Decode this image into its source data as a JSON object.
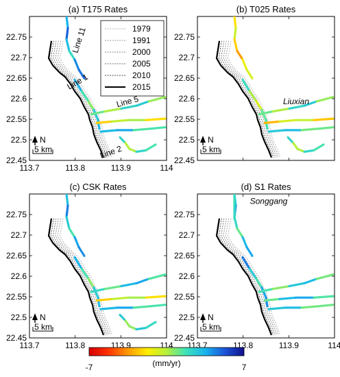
{
  "chart_data": [
    {
      "type": "scatter",
      "title": "(a) T175 Rates",
      "xlim": [
        113.7,
        114
      ],
      "ylim": [
        22.45,
        22.8
      ],
      "x_ticks": [
        "113.7",
        "113.8",
        "113.9",
        "114"
      ],
      "y_ticks": [
        "22.45",
        "22.5",
        "22.55",
        "22.6",
        "22.65",
        "22.7",
        "22.75"
      ],
      "annotations": [
        "Line 11",
        "Line 1",
        "Line 5",
        "Line 2"
      ],
      "legend": {
        "title": "",
        "entries": [
          "1979",
          "1991",
          "2000",
          "2005",
          "2010",
          "2015"
        ],
        "placement": "top-right"
      },
      "scalebar": {
        "north": "N",
        "length": "5 km"
      }
    },
    {
      "type": "scatter",
      "title": "(b) T025 Rates",
      "xlim": [
        113.7,
        114
      ],
      "ylim": [
        22.45,
        22.8
      ],
      "x_ticks": [],
      "y_ticks": [
        "22.45",
        "22.5",
        "22.55",
        "22.6",
        "22.65",
        "22.7",
        "22.75"
      ],
      "annotations": [
        "Liuxian"
      ],
      "scalebar": {
        "north": "N",
        "length": "5 km"
      }
    },
    {
      "type": "scatter",
      "title": "(c) CSK Rates",
      "xlim": [
        113.7,
        114
      ],
      "ylim": [
        22.45,
        22.8
      ],
      "x_ticks": [
        "113.7",
        "113.8",
        "113.9",
        "114"
      ],
      "y_ticks": [
        "22.45",
        "22.5",
        "22.55",
        "22.6",
        "22.65",
        "22.7",
        "22.75"
      ],
      "annotations": [],
      "scalebar": {
        "north": "N",
        "length": "5 km"
      }
    },
    {
      "type": "scatter",
      "title": "(d) S1 Rates",
      "xlim": [
        113.7,
        114
      ],
      "ylim": [
        22.45,
        22.8
      ],
      "x_ticks": [
        "113.7",
        "113.8",
        "113.9",
        "114"
      ],
      "y_ticks": [
        "22.45",
        "22.5",
        "22.55",
        "22.6",
        "22.65",
        "22.7",
        "22.75"
      ],
      "annotations": [
        "Songgang"
      ],
      "scalebar": {
        "north": "N",
        "length": "5 km"
      }
    }
  ],
  "colorbar": {
    "min_label": "-7",
    "max_label": "7",
    "unit_label": "(mm/yr)",
    "colors": [
      "#d40000",
      "#ff3300",
      "#ff9900",
      "#ffee00",
      "#b6f03c",
      "#3ce2b8",
      "#18b4ee",
      "#1c54d8",
      "#10108c"
    ]
  },
  "shoreline_colors": [
    "#b0b0b0",
    "#9a9a9a",
    "#858585",
    "#6e6e6e",
    "#4a4a4a",
    "#000000"
  ],
  "rates_by_panel": [
    [
      3.5,
      2.0,
      1.5,
      -1.0,
      2.5,
      1.0
    ],
    [
      -2.0,
      0.5,
      1.5,
      -1.5,
      2.0,
      1.0
    ],
    [
      3.0,
      2.0,
      2.5,
      -1.0,
      2.5,
      1.5
    ],
    [
      2.5,
      3.0,
      2.0,
      2.5,
      2.0,
      1.0
    ]
  ]
}
